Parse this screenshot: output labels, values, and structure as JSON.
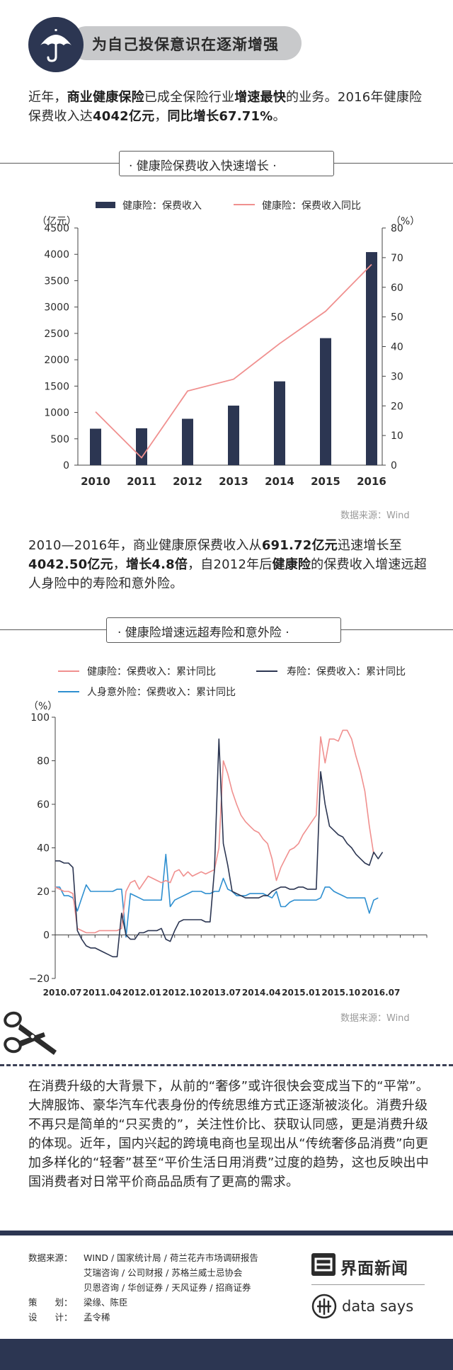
{
  "header": {
    "title": "为自己投保意识在逐渐增强"
  },
  "intro": {
    "p1": "近年，",
    "b1": "商业健康保险",
    "p2": "已成全保险行业",
    "b2": "增速最快",
    "p3": "的业务。2016年健康险保费收入达",
    "b3": "4042亿元",
    "p4": "，",
    "b4": "同比增长67.71%",
    "p5": "。"
  },
  "section1": {
    "title": "· 健康险保费收入快速增长 ·"
  },
  "section2": {
    "title": "· 健康险增速远超寿险和意外险 ·"
  },
  "mid_text": {
    "p1": "2010—2016年，商业健康原保费收入从",
    "b1": "691.72亿元",
    "p2": "迅速增长至",
    "b2": "4042.50亿元",
    "p3": "，",
    "b3": "增长4.8倍",
    "p4": "，自2012年后",
    "b4": "健康险",
    "p5": "的保费收入增速远超人身险中的寿险和意外险。"
  },
  "source1": "数据来源：Wind",
  "source2": "数据来源：Wind",
  "closing_text": "在消费升级的大背景下，从前的“奢侈”或许很快会变成当下的“平常”。大牌服饰、豪华汽车代表身份的传统思维方式正逐渐被淡化。消费升级不再只是简单的“只买贵的”，关注性价比、获取认同感，更是消费升级的体现。近年，国内兴起的跨境电商也呈现出从“传统奢侈品消费”向更加多样化的“轻奢”甚至“平价生活日用消费”过度的趋势，这也反映出中国消费者对日常平价商品品质有了更高的需求。",
  "footer": {
    "src_label": "数据来源：",
    "src_line1": "WIND / 国家统计局 / 荷兰花卉市场调研报告",
    "src_line2": "艾瑞咨询 / 公司财报 / 苏格兰威士忌协会",
    "src_line3": "贝恩咨询 / 华创证券 / 天风证券 / 招商证券",
    "plan_label": "策　　划：",
    "plan_value": "梁缘、陈臣",
    "design_label": "设　　计：",
    "design_value": "孟令稀",
    "brand_cn": "界面新闻",
    "brand_en": "data says"
  },
  "colors": {
    "navy": "#2c3652",
    "pink": "#f0908f",
    "blue": "#2e8fd0",
    "grey": "#c8c9cb"
  },
  "icons": {
    "header": "umbrella-icon",
    "scissors": "scissors-icon",
    "brand1": "jiemian-logo-icon",
    "brand2": "datasays-logo-icon"
  },
  "chart_data": [
    {
      "type": "bar",
      "categories": [
        "2010",
        "2011",
        "2012",
        "2013",
        "2014",
        "2015",
        "2016"
      ],
      "series": [
        {
          "name": "健康险：保费收入",
          "axis": "left",
          "kind": "bar",
          "values": [
            691.72,
            700,
            880,
            1130,
            1590,
            2410,
            4042.5
          ]
        },
        {
          "name": "健康险：保费收入同比",
          "axis": "right",
          "kind": "line",
          "values": [
            18,
            2.5,
            25,
            29,
            41,
            51.9,
            67.71
          ]
        }
      ],
      "ylabel_left": "（亿元）",
      "ylabel_right": "（%）",
      "ylim_left": [
        0,
        4500
      ],
      "yticks_left": [
        0,
        500,
        1000,
        1500,
        2000,
        2500,
        3000,
        3500,
        4000,
        4500
      ],
      "ylim_right": [
        0,
        80
      ],
      "yticks_right": [
        0,
        10,
        20,
        30,
        40,
        50,
        60,
        70,
        80
      ],
      "legend": "top",
      "grid": false
    },
    {
      "type": "line",
      "x_ticks": [
        "2010.07",
        "2011.04",
        "2012.01",
        "2012.10",
        "2013.07",
        "2014.04",
        "2015.01",
        "2015.10",
        "2016.07"
      ],
      "x_range": [
        0,
        84
      ],
      "ylabel": "（%）",
      "ylim": [
        -20,
        100
      ],
      "yticks": [
        -20,
        0,
        20,
        40,
        60,
        80,
        100
      ],
      "legend": "top",
      "grid": false,
      "series": [
        {
          "name": "健康险：保费收入：累计同比",
          "color": "pink",
          "points": [
            [
              0,
              22
            ],
            [
              1,
              21
            ],
            [
              2,
              20
            ],
            [
              3,
              20
            ],
            [
              4,
              19
            ],
            [
              5,
              3
            ],
            [
              6,
              2
            ],
            [
              7,
              1
            ],
            [
              8,
              1
            ],
            [
              9,
              1
            ],
            [
              10,
              2
            ],
            [
              11,
              2
            ],
            [
              12,
              2
            ],
            [
              13,
              2
            ],
            [
              14,
              2
            ],
            [
              15,
              3
            ],
            [
              16,
              20
            ],
            [
              17,
              24
            ],
            [
              18,
              25
            ],
            [
              19,
              21
            ],
            [
              20,
              24
            ],
            [
              21,
              27
            ],
            [
              22,
              26
            ],
            [
              23,
              25
            ],
            [
              24,
              24
            ],
            [
              25,
              25
            ],
            [
              26,
              24
            ],
            [
              27,
              29
            ],
            [
              28,
              30
            ],
            [
              29,
              27
            ],
            [
              30,
              29
            ],
            [
              31,
              27
            ],
            [
              32,
              28
            ],
            [
              33,
              29
            ],
            [
              34,
              28
            ],
            [
              35,
              29
            ],
            [
              36,
              30
            ],
            [
              37,
              40
            ],
            [
              38,
              80
            ],
            [
              39,
              74
            ],
            [
              40,
              66
            ],
            [
              41,
              60
            ],
            [
              42,
              55
            ],
            [
              43,
              52
            ],
            [
              44,
              50
            ],
            [
              45,
              48
            ],
            [
              46,
              47
            ],
            [
              47,
              44
            ],
            [
              48,
              42
            ],
            [
              49,
              35
            ],
            [
              50,
              25
            ],
            [
              51,
              31
            ],
            [
              52,
              35
            ],
            [
              53,
              39
            ],
            [
              54,
              40
            ],
            [
              55,
              42
            ],
            [
              56,
              46
            ],
            [
              57,
              49
            ],
            [
              58,
              52
            ],
            [
              59,
              55
            ],
            [
              60,
              91
            ],
            [
              61,
              79
            ],
            [
              62,
              90
            ],
            [
              63,
              90
            ],
            [
              64,
              89
            ],
            [
              65,
              94
            ],
            [
              66,
              94
            ],
            [
              67,
              90
            ],
            [
              68,
              82
            ],
            [
              69,
              75
            ],
            [
              70,
              66
            ],
            [
              71,
              50
            ],
            [
              72,
              37
            ]
          ]
        },
        {
          "name": "寿险：保费收入：累计同比",
          "color": "navy",
          "points": [
            [
              0,
              34
            ],
            [
              1,
              34
            ],
            [
              2,
              33
            ],
            [
              3,
              33
            ],
            [
              4,
              31
            ],
            [
              5,
              2
            ],
            [
              6,
              -2
            ],
            [
              7,
              -5
            ],
            [
              8,
              -6
            ],
            [
              9,
              -6
            ],
            [
              10,
              -7
            ],
            [
              11,
              -8
            ],
            [
              12,
              -9
            ],
            [
              13,
              -10
            ],
            [
              14,
              -10
            ],
            [
              15,
              10
            ],
            [
              16,
              0
            ],
            [
              17,
              -2
            ],
            [
              18,
              -2
            ],
            [
              19,
              1
            ],
            [
              20,
              1
            ],
            [
              21,
              2
            ],
            [
              22,
              2
            ],
            [
              23,
              2
            ],
            [
              24,
              3
            ],
            [
              25,
              -2
            ],
            [
              26,
              -3
            ],
            [
              27,
              2
            ],
            [
              28,
              6
            ],
            [
              29,
              7
            ],
            [
              30,
              7
            ],
            [
              31,
              7
            ],
            [
              32,
              7
            ],
            [
              33,
              7
            ],
            [
              34,
              6
            ],
            [
              35,
              6
            ],
            [
              36,
              30
            ],
            [
              37,
              90
            ],
            [
              38,
              42
            ],
            [
              39,
              32
            ],
            [
              40,
              20
            ],
            [
              41,
              19
            ],
            [
              42,
              18
            ],
            [
              43,
              17
            ],
            [
              44,
              17
            ],
            [
              45,
              17
            ],
            [
              46,
              17
            ],
            [
              47,
              18
            ],
            [
              48,
              18
            ],
            [
              49,
              20
            ],
            [
              50,
              21
            ],
            [
              51,
              22
            ],
            [
              52,
              22
            ],
            [
              53,
              21
            ],
            [
              54,
              21
            ],
            [
              55,
              22
            ],
            [
              56,
              22
            ],
            [
              57,
              21
            ],
            [
              58,
              21
            ],
            [
              59,
              21
            ],
            [
              60,
              75
            ],
            [
              61,
              60
            ],
            [
              62,
              50
            ],
            [
              63,
              48
            ],
            [
              64,
              46
            ],
            [
              65,
              45
            ],
            [
              66,
              42
            ],
            [
              67,
              40
            ],
            [
              68,
              37
            ],
            [
              69,
              35
            ],
            [
              70,
              33
            ],
            [
              71,
              32
            ],
            [
              72,
              38
            ],
            [
              73,
              35
            ],
            [
              74,
              38
            ]
          ]
        },
        {
          "name": "人身意外险：保费收入：累计同比",
          "color": "blue",
          "points": [
            [
              0,
              22
            ],
            [
              1,
              22
            ],
            [
              2,
              18
            ],
            [
              3,
              18
            ],
            [
              4,
              17
            ],
            [
              5,
              11
            ],
            [
              6,
              17
            ],
            [
              7,
              23
            ],
            [
              8,
              20
            ],
            [
              9,
              20
            ],
            [
              10,
              20
            ],
            [
              11,
              20
            ],
            [
              12,
              20
            ],
            [
              13,
              20
            ],
            [
              14,
              21
            ],
            [
              15,
              21
            ],
            [
              16,
              -1
            ],
            [
              17,
              19
            ],
            [
              18,
              18
            ],
            [
              19,
              17
            ],
            [
              20,
              16
            ],
            [
              21,
              16
            ],
            [
              22,
              16
            ],
            [
              23,
              16
            ],
            [
              24,
              16
            ],
            [
              25,
              37
            ],
            [
              26,
              13
            ],
            [
              27,
              16
            ],
            [
              28,
              17
            ],
            [
              29,
              18
            ],
            [
              30,
              19
            ],
            [
              31,
              20
            ],
            [
              32,
              20
            ],
            [
              33,
              20
            ],
            [
              34,
              19
            ],
            [
              35,
              19
            ],
            [
              36,
              20
            ],
            [
              37,
              20
            ],
            [
              38,
              26
            ],
            [
              39,
              21
            ],
            [
              40,
              20
            ],
            [
              41,
              18
            ],
            [
              42,
              18
            ],
            [
              43,
              18
            ],
            [
              44,
              19
            ],
            [
              45,
              19
            ],
            [
              46,
              19
            ],
            [
              47,
              19
            ],
            [
              48,
              18
            ],
            [
              49,
              17
            ],
            [
              50,
              20
            ],
            [
              51,
              13
            ],
            [
              52,
              13
            ],
            [
              53,
              15
            ],
            [
              54,
              16
            ],
            [
              55,
              16
            ],
            [
              56,
              16
            ],
            [
              57,
              16
            ],
            [
              58,
              16
            ],
            [
              59,
              16
            ],
            [
              60,
              17
            ],
            [
              61,
              22
            ],
            [
              62,
              22
            ],
            [
              63,
              20
            ],
            [
              64,
              19
            ],
            [
              65,
              18
            ],
            [
              66,
              17
            ],
            [
              67,
              17
            ],
            [
              68,
              17
            ],
            [
              69,
              17
            ],
            [
              70,
              17
            ],
            [
              71,
              10
            ],
            [
              72,
              16
            ],
            [
              73,
              17
            ]
          ]
        }
      ]
    }
  ]
}
